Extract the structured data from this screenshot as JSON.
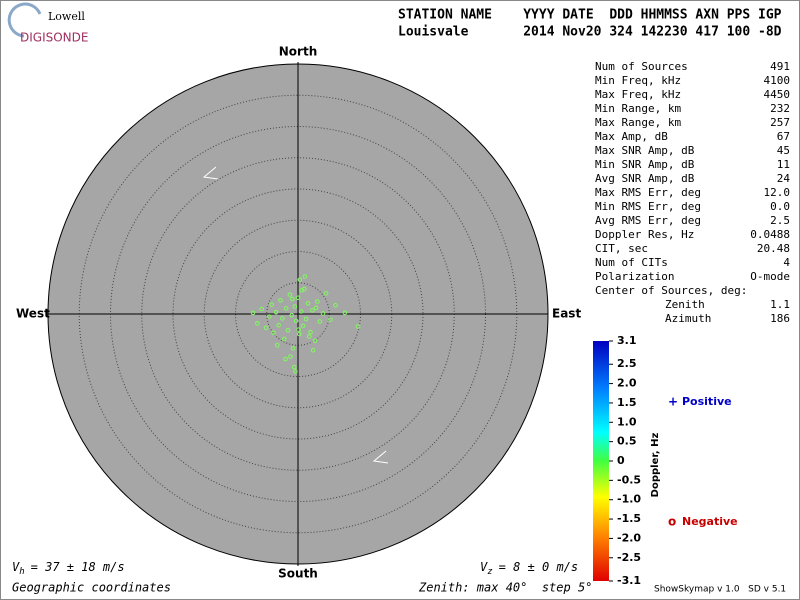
{
  "logo": {
    "top": "Lowell",
    "bottom": "DIGISONDE"
  },
  "header": {
    "line1": "STATION NAME    YYYY DATE  DDD HHMMSS AXN PPS IGP",
    "line2": "Louisvale       2014 Nov20 324 142230 417 100 -8D"
  },
  "stats": [
    [
      "Num of Sources",
      "491"
    ],
    [
      "Min Freq, kHz",
      "4100"
    ],
    [
      "Max Freq, kHz",
      "4450"
    ],
    [
      "Min Range, km",
      "232"
    ],
    [
      "Max Range, km",
      "257"
    ],
    [
      "Max Amp, dB",
      "67"
    ],
    [
      "Max SNR Amp, dB",
      "45"
    ],
    [
      "Min SNR Amp, dB",
      "11"
    ],
    [
      "Avg SNR Amp, dB",
      "24"
    ],
    [
      "Max RMS Err, deg",
      "12.0"
    ],
    [
      "Min RMS Err, deg",
      "0.0"
    ],
    [
      "Avg RMS Err, deg",
      "2.5"
    ],
    [
      "Doppler Res, Hz",
      "0.0488"
    ],
    [
      "CIT, sec",
      "20.48"
    ],
    [
      "Num of CITs",
      "4"
    ],
    [
      "Polarization",
      "O-mode"
    ]
  ],
  "center": {
    "title": "Center of Sources, deg:",
    "rows": [
      [
        "Zenith",
        "1.1"
      ],
      [
        "Azimuth",
        "186"
      ]
    ]
  },
  "footer": {
    "vh": {
      "symbol": "V",
      "sub": "h",
      "text": "= 37 ± 18 m/s"
    },
    "vz": {
      "symbol": "V",
      "sub": "z",
      "text": "= 8 ± 0 m/s"
    },
    "coords": "Geographic coordinates",
    "zenith": "Zenith: max 40°  step 5°",
    "version": "ShowSkymap v 1.0   SD v 5.1"
  },
  "chart_data": {
    "type": "scatter",
    "compass": {
      "north": "North",
      "south": "South",
      "east": "East",
      "west": "West"
    },
    "xlim": [
      -40,
      40
    ],
    "ylim": [
      -40,
      40
    ],
    "rticks": [
      5,
      10,
      15,
      20,
      25,
      30,
      35
    ],
    "series": [
      {
        "color": "#7dfc5a",
        "x": [
          -7.2,
          -6.5,
          -5.8,
          -5.1,
          -4.6,
          -4.2,
          -3.9,
          -3.5,
          -3.1,
          -2.8,
          -2.5,
          -2.2,
          -1.9,
          -1.6,
          -1.3,
          -1.0,
          -0.8,
          -0.5,
          -0.3,
          0,
          0.2,
          0.5,
          0.8,
          1.0,
          1.3,
          1.6,
          2.0,
          2.3,
          2.7,
          3.1,
          3.5,
          4.0,
          4.5,
          5.2,
          6.0,
          7.5,
          9.6,
          -1.2,
          -0.6,
          0.3,
          1.1,
          2.4,
          -2.0,
          -0.4,
          0.6,
          1.8,
          -0.9,
          0.1,
          2.9,
          -3.3
        ],
        "values": [
          0.2,
          -1.5,
          0.8,
          -2.2,
          -0.4,
          1.5,
          -3.0,
          0.3,
          -1.8,
          2.2,
          -0.7,
          -4.0,
          0.9,
          -2.6,
          3.1,
          -0.2,
          -5.5,
          1.2,
          -1.1,
          2.6,
          -3.2,
          0.4,
          -1.9,
          4.0,
          -0.8,
          1.7,
          -2.9,
          0.6,
          -4.3,
          2.0,
          -1.2,
          0.1,
          3.3,
          -0.9,
          1.4,
          0.2,
          -2.0,
          -6.8,
          -8.5,
          5.5,
          6.0,
          -5.8,
          -7.2,
          -9.2,
          3.8,
          -3.6,
          2.4,
          -2.5,
          1.0,
          -5.0
        ]
      }
    ],
    "legend": [
      {
        "marker": "+",
        "name": "Positive",
        "color": "#0000c8"
      },
      {
        "marker": "o",
        "name": "Negative",
        "color": "#c80000"
      }
    ],
    "colorbar": {
      "label": "Doppler, Hz",
      "lim": [
        -3.1,
        3.1
      ],
      "ticks": [
        3.1,
        2.5,
        {
          "value": 2,
          "label": "2.0"
        },
        1.5,
        {
          "value": 1,
          "label": "1.0"
        },
        0.5,
        0,
        -0.5,
        {
          "value": -1,
          "label": "-1.0"
        },
        -1.5,
        {
          "value": -2,
          "label": "-2.0"
        },
        -2.5,
        -3.1
      ]
    }
  }
}
